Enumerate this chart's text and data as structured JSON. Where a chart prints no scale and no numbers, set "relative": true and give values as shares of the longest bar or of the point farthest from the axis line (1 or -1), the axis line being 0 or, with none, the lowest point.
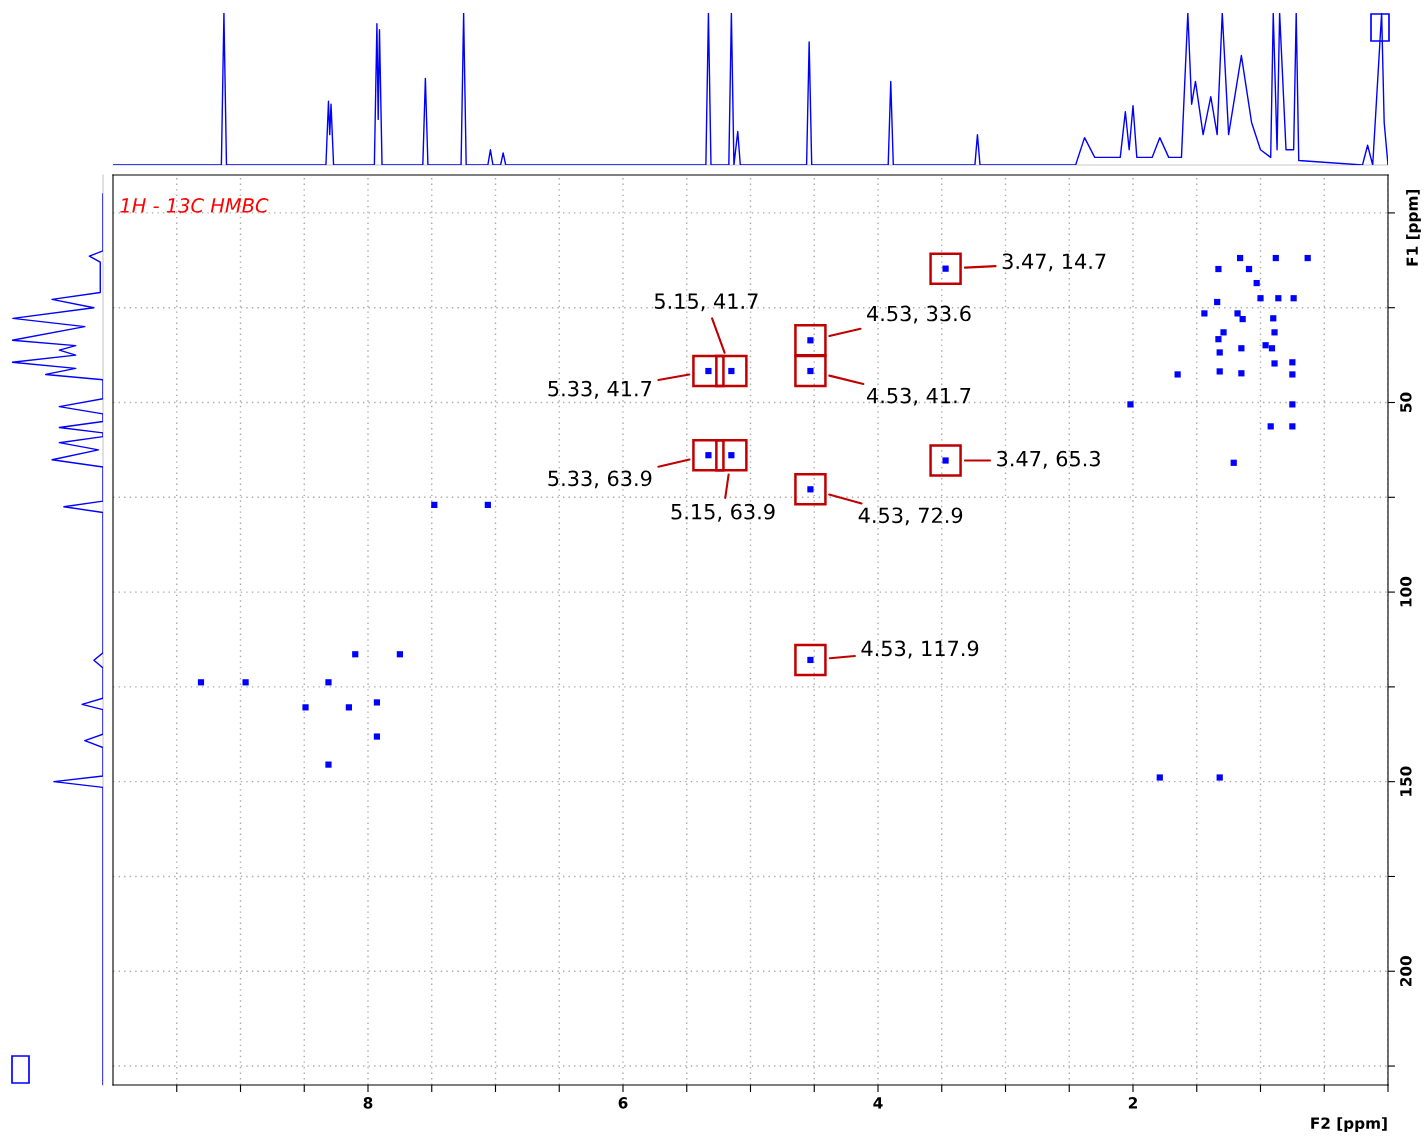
{
  "chart_data": [
    {
      "type": "line",
      "relative": true,
      "color": "#0000ff",
      "xlim": [
        10,
        0
      ],
      "x": [
        10,
        9.15,
        9.13,
        9.11,
        8.33,
        8.31,
        8.3,
        8.29,
        8.27,
        7.95,
        7.93,
        7.92,
        7.91,
        7.89,
        7.57,
        7.55,
        7.53,
        7.27,
        7.25,
        7.23,
        7.06,
        7.04,
        7.02,
        6.96,
        6.94,
        6.92,
        5.35,
        5.33,
        5.31,
        5.17,
        5.15,
        5.13,
        5.1,
        5.08,
        4.56,
        4.54,
        4.52,
        3.92,
        3.9,
        3.88,
        3.24,
        3.22,
        3.2,
        2.45,
        2.38,
        2.3,
        2.1,
        2.06,
        2.03,
        2.0,
        1.97,
        1.85,
        1.79,
        1.72,
        1.62,
        1.57,
        1.54,
        1.51,
        1.45,
        1.39,
        1.34,
        1.3,
        1.25,
        1.15,
        1.07,
        1.0,
        0.92,
        0.9,
        0.87,
        0.85,
        0.8,
        0.74,
        0.72,
        0.7,
        0.2,
        0.16,
        0.12,
        0.05,
        0.03,
        0.0
      ],
      "values": [
        0,
        0,
        1,
        0,
        0,
        0.42,
        0.2,
        0.4,
        0,
        0,
        0.93,
        0.3,
        0.89,
        0,
        0,
        0.57,
        0,
        0,
        1,
        0,
        0,
        0.1,
        0,
        0,
        0.08,
        0,
        0,
        1,
        0,
        0,
        1,
        0,
        0.22,
        0,
        0,
        0.81,
        0,
        0,
        0.55,
        0,
        0,
        0.2,
        0,
        0,
        0.18,
        0.05,
        0.05,
        0.35,
        0.1,
        0.39,
        0.05,
        0.05,
        0.18,
        0.05,
        0.05,
        1,
        0.4,
        0.55,
        0.2,
        0.45,
        0.2,
        1,
        0.2,
        0.72,
        0.28,
        0.1,
        0.05,
        1,
        0.1,
        1,
        0.1,
        0.1,
        1,
        0.03,
        0,
        0.13,
        0,
        1,
        0.28,
        0
      ]
    },
    {
      "type": "line",
      "relative": true,
      "orientation": "horizontal",
      "color": "#0000ff",
      "ylim": [
        230,
        -10
      ],
      "x": [
        -5,
        10,
        11.4,
        13,
        21,
        22.8,
        25,
        27.8,
        30,
        33.6,
        35,
        36.2,
        37.5,
        39.4,
        41,
        42.6,
        44,
        49,
        51.1,
        53,
        55,
        56.6,
        58,
        59,
        60.6,
        62.5,
        65.1,
        67,
        76,
        77.5,
        79,
        116,
        118,
        120,
        128,
        129.6,
        131,
        137.5,
        139.2,
        141,
        148.5,
        150,
        151.5,
        230
      ],
      "values": [
        0,
        0,
        -0.15,
        -0.03,
        -0.03,
        -0.56,
        -0.1,
        -0.99,
        -0.2,
        -1,
        -0.3,
        -0.48,
        -0.3,
        -1,
        -0.3,
        -0.63,
        0,
        0,
        -0.48,
        0,
        0,
        -0.48,
        0,
        0,
        -0.48,
        -0.05,
        -0.56,
        0,
        0,
        -0.43,
        0,
        0,
        -0.1,
        0,
        0,
        -0.23,
        0,
        0,
        -0.2,
        0,
        0,
        -0.54,
        0,
        0
      ]
    },
    {
      "type": "scatter",
      "color": "#0000ff",
      "marker": "square",
      "grid": true,
      "xlabel": "F2 [ppm]",
      "ylabel": "F1 [ppm]",
      "xlim": [
        10,
        0
      ],
      "ylim": [
        230,
        -10
      ],
      "xticks": [
        {
          "value": 9.5,
          "label": null
        },
        {
          "value": 9,
          "label": null
        },
        {
          "value": 8.5,
          "label": null
        },
        8,
        {
          "value": 7.5,
          "label": null
        },
        {
          "value": 7,
          "label": null
        },
        {
          "value": 6.5,
          "label": null
        },
        6,
        {
          "value": 5.5,
          "label": null
        },
        {
          "value": 5,
          "label": null
        },
        {
          "value": 4.5,
          "label": null
        },
        4,
        {
          "value": 3.5,
          "label": null
        },
        {
          "value": 3,
          "label": null
        },
        {
          "value": 2.5,
          "label": null
        },
        2,
        {
          "value": 1.5,
          "label": null
        },
        {
          "value": 1,
          "label": null
        },
        {
          "value": 0.5,
          "label": null
        },
        {
          "value": 0,
          "label": null
        }
      ],
      "yticks": [
        {
          "value": 0,
          "label": null
        },
        {
          "value": 25,
          "label": null
        },
        50,
        {
          "value": 75,
          "label": null
        },
        100,
        {
          "value": 125,
          "label": null
        },
        150,
        {
          "value": 175,
          "label": null
        },
        200,
        {
          "value": 225,
          "label": null
        }
      ],
      "x": [
        7.48,
        7.06,
        9.31,
        8.96,
        8.31,
        8.1,
        7.75,
        8.49,
        8.15,
        7.93,
        7.93,
        8.31,
        5.33,
        5.15,
        4.53,
        4.53,
        3.47,
        5.33,
        5.15,
        3.47,
        4.53,
        4.53,
        1.16,
        0.88,
        0.63,
        1.33,
        1.09,
        1.03,
        1.34,
        1.0,
        0.86,
        0.74,
        1.44,
        1.18,
        1.14,
        0.9,
        1.29,
        0.89,
        1.33,
        1.32,
        1.15,
        0.96,
        0.91,
        0.89,
        0.75,
        0.75,
        1.32,
        1.15,
        1.65,
        2.02,
        0.75,
        0.92,
        0.75,
        1.21,
        1.79,
        1.32
      ],
      "values": [
        77.0,
        77.0,
        123.8,
        123.8,
        123.8,
        116.4,
        116.4,
        130.4,
        130.4,
        129.1,
        138.1,
        145.5,
        41.7,
        41.7,
        33.6,
        41.7,
        14.7,
        63.9,
        63.9,
        65.3,
        72.9,
        117.9,
        11.9,
        11.9,
        11.9,
        14.8,
        14.8,
        18.5,
        23.5,
        22.5,
        22.5,
        22.5,
        26.5,
        26.5,
        28.0,
        27.8,
        31.5,
        31.5,
        33.3,
        36.8,
        35.7,
        34.9,
        35.7,
        39.7,
        39.4,
        42.6,
        41.8,
        42.3,
        42.6,
        50.5,
        50.5,
        56.3,
        56.3,
        65.9,
        148.9,
        148.9
      ],
      "annotations": [
        "1H - 13C HMBC",
        {
          "text": "5.33, 41.7",
          "x": 5.33,
          "y": 41.7
        },
        {
          "text": "5.15, 41.7",
          "x": 5.15,
          "y": 41.7
        },
        {
          "text": "4.53, 33.6",
          "x": 4.53,
          "y": 33.6
        },
        {
          "text": "4.53, 41.7",
          "x": 4.53,
          "y": 41.7
        },
        {
          "text": "3.47, 14.7",
          "x": 3.47,
          "y": 14.7
        },
        {
          "text": "5.33, 63.9",
          "x": 5.33,
          "y": 63.9
        },
        {
          "text": "5.15, 63.9",
          "x": 5.15,
          "y": 63.9
        },
        {
          "text": "3.47, 65.3",
          "x": 3.47,
          "y": 65.3
        },
        {
          "text": "4.53, 72.9",
          "x": 4.53,
          "y": 72.9
        },
        {
          "text": "4.53, 117.9",
          "x": 4.53,
          "y": 117.9
        }
      ]
    }
  ]
}
